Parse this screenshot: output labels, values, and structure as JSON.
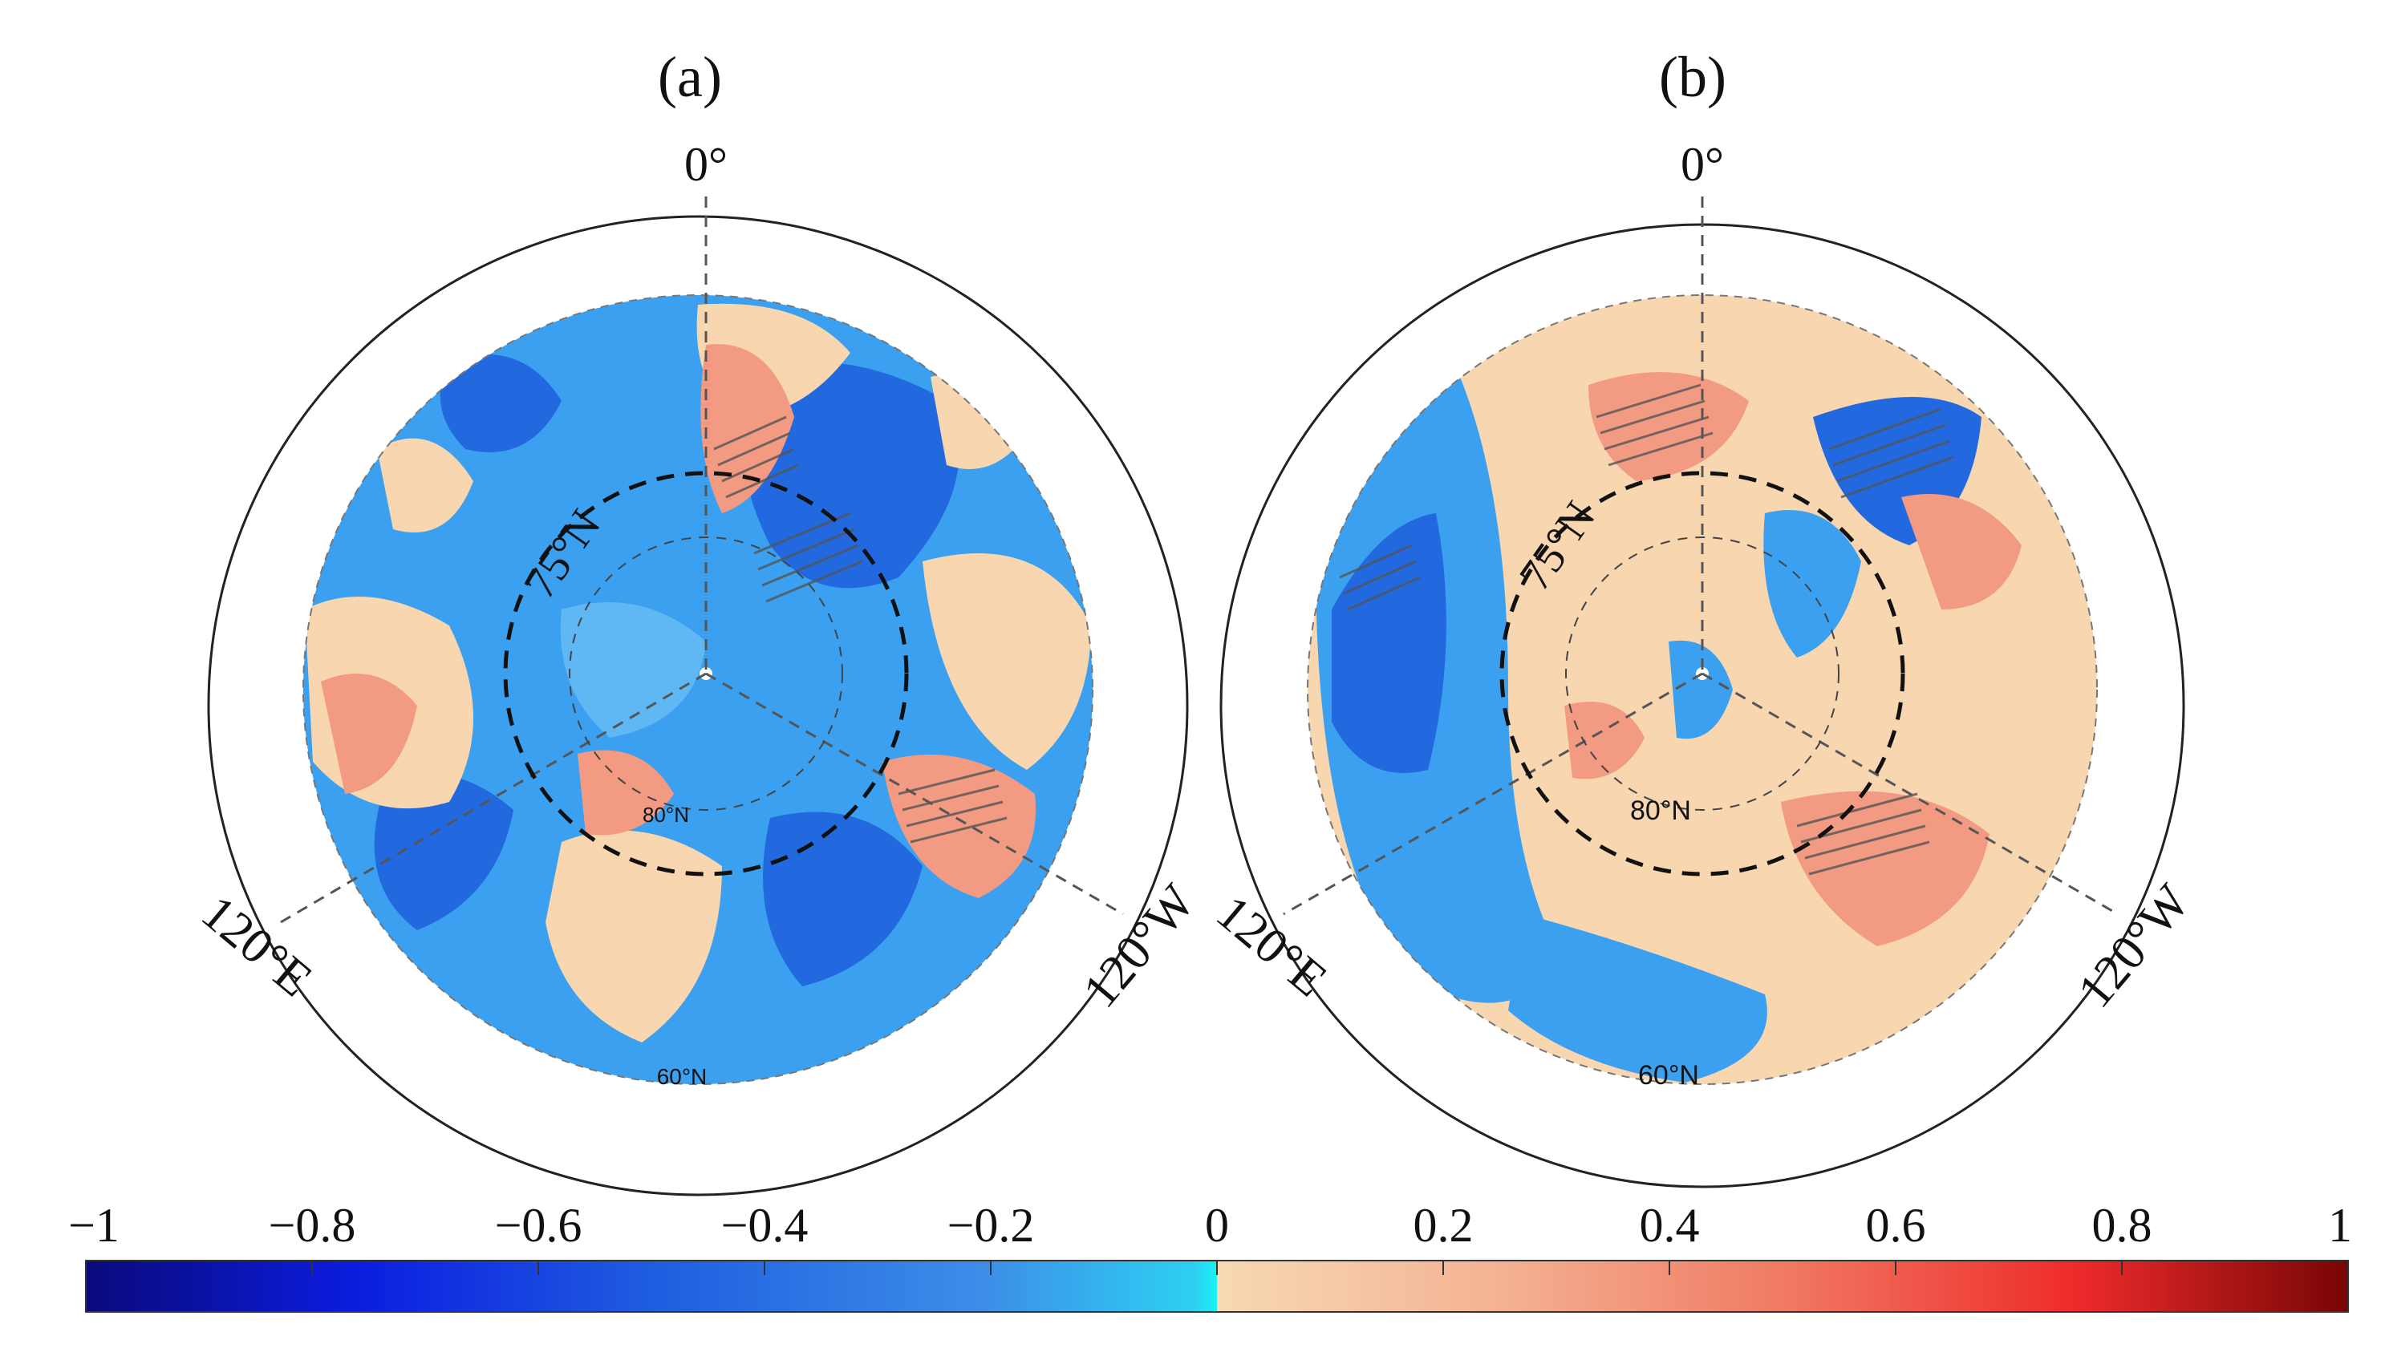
{
  "figure": {
    "panels": [
      {
        "id": "a",
        "label": "(a)",
        "top_meridian": "0°",
        "left_meridian": "120°E",
        "right_meridian": "120°W",
        "lat_circle_outer": "75°N",
        "lat_label_inner": "80°N",
        "lat_label_edge": "60°N"
      },
      {
        "id": "b",
        "label": "(b)",
        "top_meridian": "0°",
        "left_meridian": "120°E",
        "right_meridian": "120°W",
        "lat_circle_outer": "75°N",
        "lat_label_inner": "80°N",
        "lat_label_edge": "60°N"
      }
    ],
    "colorbar": {
      "ticks": [
        "−1",
        "−0.8",
        "−0.6",
        "−0.4",
        "−0.2",
        "0",
        "0.2",
        "0.4",
        "0.6",
        "0.8",
        "1"
      ],
      "min": -1,
      "max": 1,
      "colors": {
        "neg_dark": "#0a0a7a",
        "neg_mid": "#1f5de0",
        "neg_light": "#39a0f2",
        "neg_cyan": "#17f2f4",
        "pos_light": "#f7d9b4",
        "pos_mid": "#f29a82",
        "pos_red": "#ee2b2b",
        "pos_dark": "#780505"
      }
    }
  }
}
